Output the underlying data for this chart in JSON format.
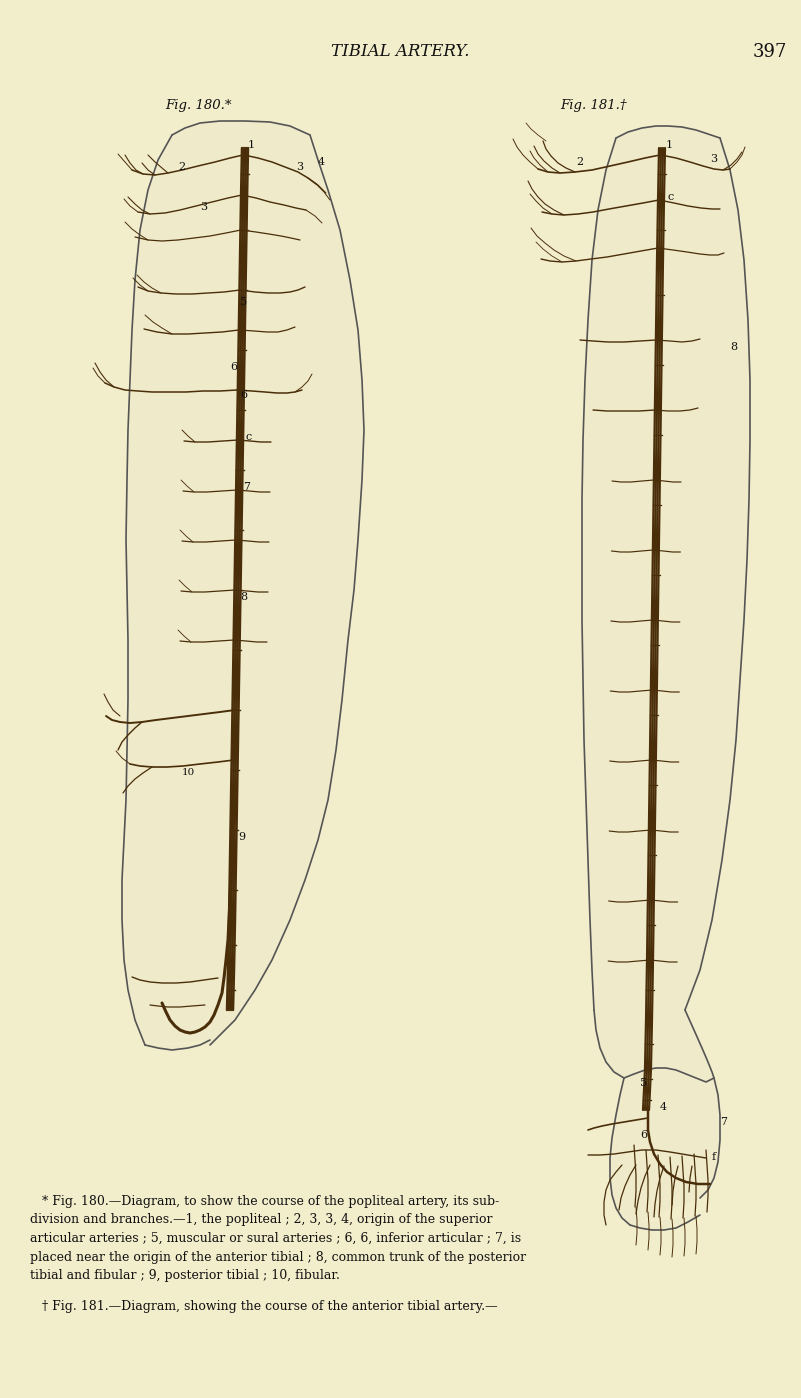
{
  "background_color": "#f2edcb",
  "page_width": 8.01,
  "page_height": 13.98,
  "title": "TIBIAL ARTERY.",
  "page_number": "397",
  "title_fontsize": 12,
  "fig180_label": "Fig. 180.*",
  "fig181_label": "Fig. 181.†",
  "caption_text": "   * Fig. 180.—Diagram, to show the course of the popliteal artery, its sub-\ndivision and branches.—1, the popliteal ; 2, 3, 3, 4, origin of the superior\narticular arteries ; 5, muscular or sural arteries ; 6, 6, inferior articular ; 7, is\nplaced near the origin of the anterior tibial ; 8, common trunk of the posterior\ntibial and fibular ; 9, posterior tibial ; 10, fibular.",
  "caption2_text": "   † Fig. 181.—Diagram, showing the course of the anterior tibial artery.—",
  "text_color": "#111111",
  "artery_color": "#4a2e0a",
  "leg_color": "#ccccaa",
  "leg_outline_color": "#555555"
}
